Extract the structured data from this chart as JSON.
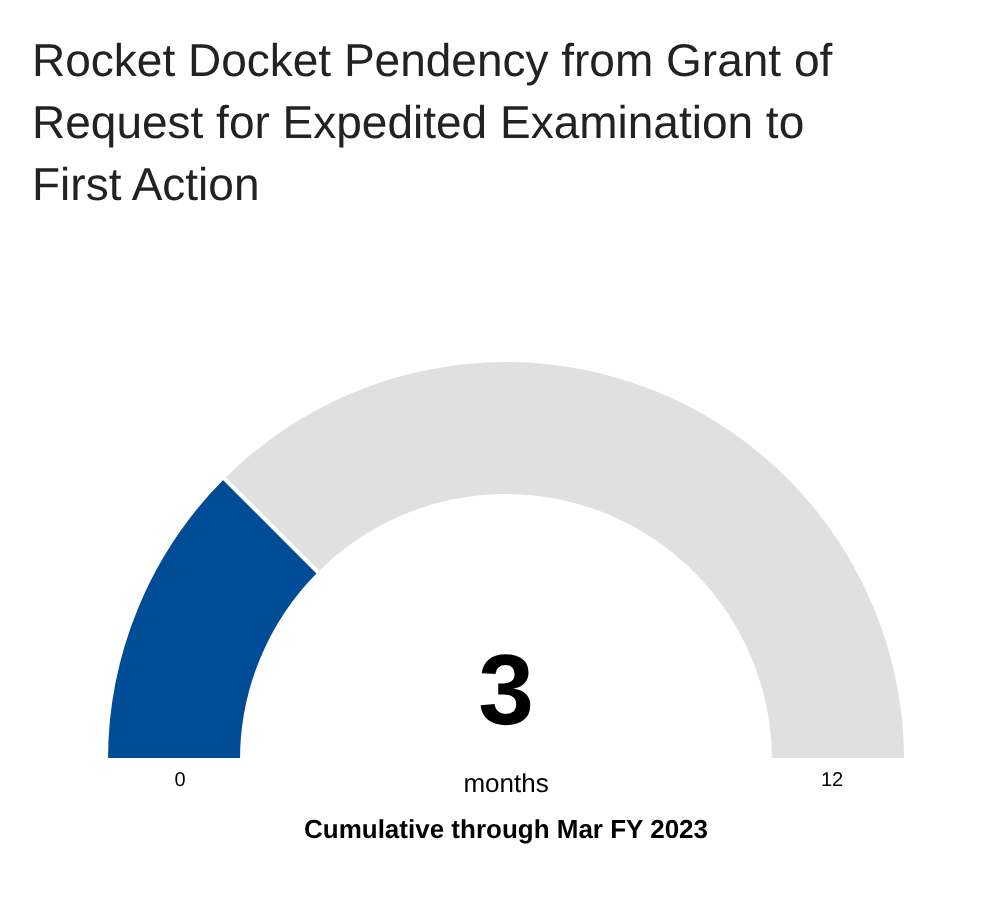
{
  "chart_data": {
    "type": "donut",
    "title": "Rocket Docket Pendency from Grant of Request for Expedited Examination to First Action",
    "categories": [
      null,
      null
    ],
    "values": [
      25,
      75
    ],
    "colors": [
      "#004c97",
      "#e0e0e0"
    ],
    "annotations": [
      "3",
      "months",
      "0",
      "12",
      "Cumulative through Mar FY 2023"
    ]
  }
}
